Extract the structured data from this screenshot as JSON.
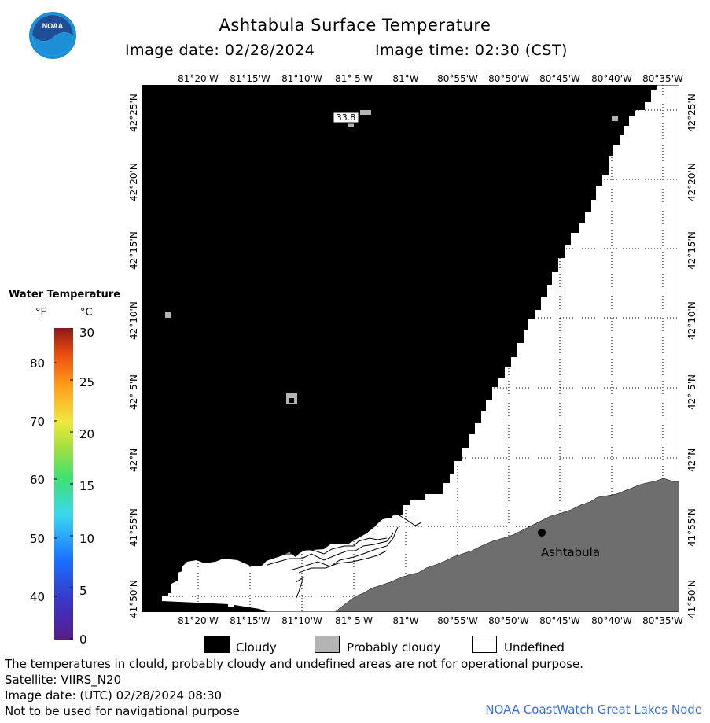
{
  "header": {
    "title": "Ashtabula Surface Temperature",
    "image_date": "Image date: 02/28/2024",
    "image_time": "Image time: 02:30 (CST)"
  },
  "logo": {
    "text": "NOAA"
  },
  "map": {
    "lon_labels": [
      "81°20'W",
      "81°15'W",
      "81°10'W",
      "81° 5'W",
      "81°W",
      "80°55'W",
      "80°50'W",
      "80°45'W",
      "80°40'W",
      "80°35'W"
    ],
    "lat_labels": [
      "42°25'N",
      "42°20'N",
      "42°15'N",
      "42°10'N",
      "42° 5'N",
      "42°N",
      "41°55'N",
      "41°50'N"
    ],
    "temperature_label": "33.8",
    "city": "Ashtabula",
    "colors": {
      "cloudy": "#000000",
      "probably_cloudy": "#b4b4b4",
      "undefined": "#ffffff",
      "land": "#6e6e6e"
    }
  },
  "legend": {
    "title": "Water Temperature",
    "unit_f": "°F",
    "unit_c": "°C",
    "f_ticks": [
      "80",
      "70",
      "60",
      "50",
      "40"
    ],
    "c_ticks": [
      "30",
      "25",
      "20",
      "15",
      "10",
      "5",
      "0"
    ]
  },
  "key": {
    "cloudy": "Cloudy",
    "probably_cloudy": "Probably cloudy",
    "undefined": "Undefined"
  },
  "footer": {
    "line1": "The temperatures in clould, probably cloudy and undefined areas are not for operational purpose.",
    "line2": "Satellite: VIIRS_N20",
    "line3": "Image date: (UTC) 02/28/2024  08:30",
    "line4": "Not to be used for navigational purpose",
    "credit": "NOAA CoastWatch Great Lakes Node"
  }
}
